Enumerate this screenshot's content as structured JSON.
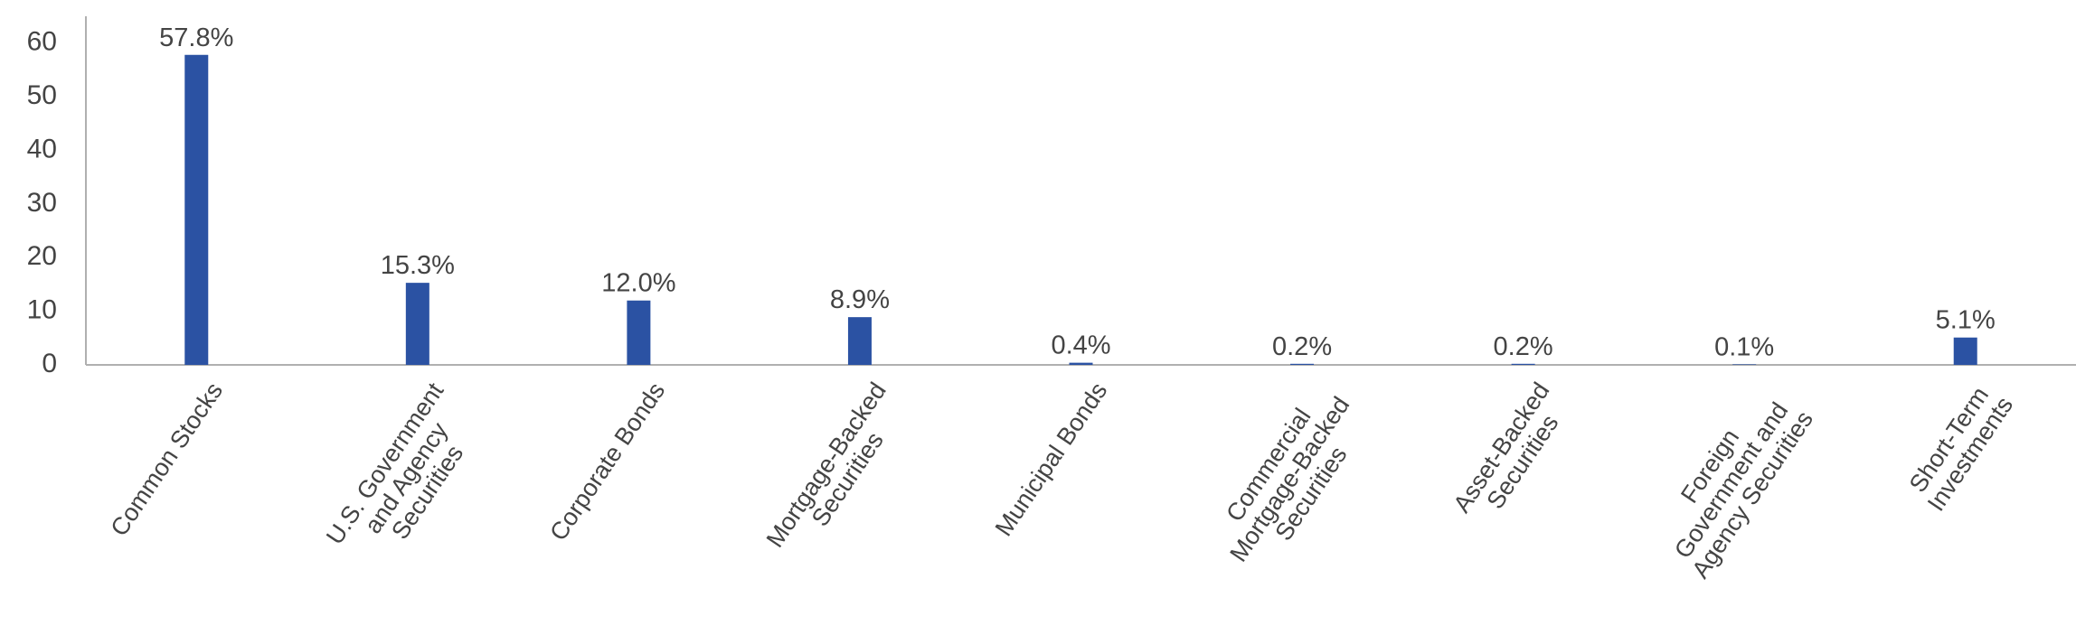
{
  "chart_data": {
    "type": "bar",
    "categories": [
      "Common Stocks",
      "U.S. Government\nand Agency\nSecurities",
      "Corporate Bonds",
      "Mortgage-Backed\nSecurities",
      "Municipal Bonds",
      "Commercial\nMortgage-Backed\nSecurities",
      "Asset-Backed\nSecurities",
      "Foreign\nGovernment and\nAgency Securities",
      "Short-Term\nInvestments"
    ],
    "values": [
      57.8,
      15.3,
      12.0,
      8.9,
      0.4,
      0.2,
      0.2,
      0.1,
      5.1
    ],
    "value_labels": [
      "57.8%",
      "15.3%",
      "12.0%",
      "8.9%",
      "0.4%",
      "0.2%",
      "0.2%",
      "0.1%",
      "5.1%"
    ],
    "color": "#2b52a3",
    "ylim": [
      0,
      65
    ],
    "yticks": [
      0,
      10,
      20,
      30,
      40,
      50,
      60
    ],
    "grid": false
  }
}
